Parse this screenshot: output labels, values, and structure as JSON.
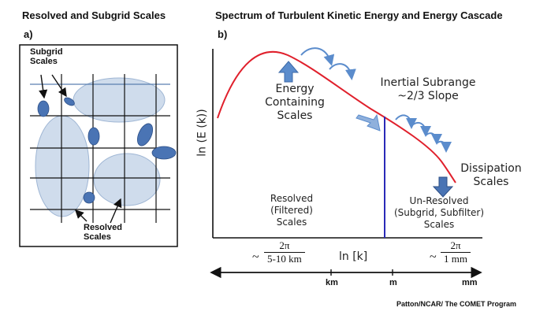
{
  "left": {
    "title": "Resolved and Subgrid Scales",
    "panel_label": "a)",
    "subgrid_label": [
      "Subgrid",
      "Scales"
    ],
    "resolved_label": [
      "Resolved",
      "Scales"
    ]
  },
  "right": {
    "title": "Spectrum of Turbulent Kinetic Energy and Energy Cascade",
    "panel_label": "b)",
    "y_axis_label": "ln (E (k))",
    "x_axis_label": "ln [k]",
    "energy_label": [
      "Energy",
      "Containing",
      "Scales"
    ],
    "inertial_label": [
      "Inertial Subrange",
      "~2/3 Slope"
    ],
    "dissipation_label": [
      "Dissipation",
      "Scales"
    ],
    "resolved_label": [
      "Resolved",
      "(Filtered)",
      "Scales"
    ],
    "unresolved_label": [
      "Un-Resolved",
      "(Subgrid, Subfilter)",
      "Scales"
    ],
    "left_fraction": {
      "tilde": "~",
      "numerator": "2π",
      "denominator": "5-10 km"
    },
    "right_fraction": {
      "tilde": "~",
      "numerator": "2π",
      "denominator": "1 mm"
    },
    "scale_ticks": [
      "km",
      "m",
      "mm"
    ]
  },
  "credit": "Patton/NCAR/ The COMET Program",
  "colors": {
    "blob_light": "#cfdcec",
    "blob_dark": "#4a74b4",
    "curve": "#e0202c",
    "cutoff_line": "#2a2ab8",
    "arrow": "#5b8ccc"
  }
}
